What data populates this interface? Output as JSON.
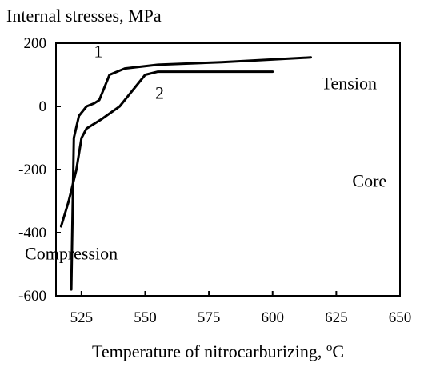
{
  "chart_data": {
    "type": "line",
    "ylabel": "Internal stresses, MPa",
    "xlabel_main": "Temperature of nitrocarburizing, ",
    "xlabel_sup": "o",
    "xlabel_unit": "C",
    "xlim": [
      515,
      650
    ],
    "ylim": [
      -600,
      200
    ],
    "xticks": [
      525,
      550,
      575,
      600,
      625,
      650
    ],
    "yticks": [
      200,
      0,
      -200,
      -400,
      -600
    ],
    "grid": false,
    "series": [
      {
        "name": "1",
        "x": [
          521,
          522,
          524,
          527,
          530,
          532,
          536,
          542,
          555,
          580,
          615
        ],
        "y": [
          -580,
          -100,
          -30,
          0,
          10,
          20,
          100,
          120,
          132,
          140,
          155
        ]
      },
      {
        "name": "2",
        "x": [
          517,
          520,
          523,
          525,
          527,
          533,
          540,
          550,
          555,
          600
        ],
        "y": [
          -380,
          -300,
          -200,
          -100,
          -70,
          -40,
          0,
          100,
          110,
          110
        ]
      }
    ],
    "annotations": [
      {
        "text": "Tension",
        "x": 630,
        "y": 55
      },
      {
        "text": "Core",
        "x": 638,
        "y": -255
      },
      {
        "text": "Compression",
        "x": 521,
        "y": -485
      }
    ]
  }
}
